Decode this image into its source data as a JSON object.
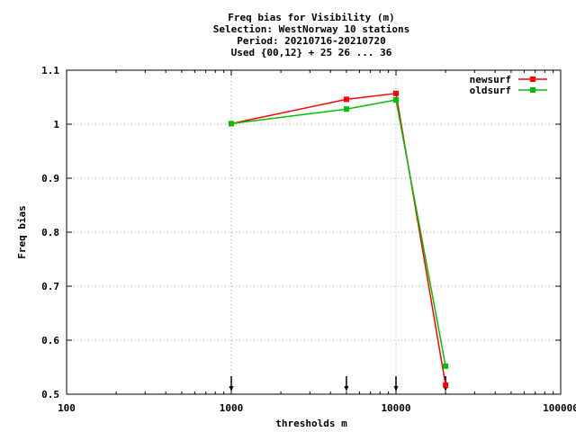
{
  "chart_data": {
    "type": "line",
    "title_lines": [
      "Freq bias  for Visibility (m)",
      "Selection: WestNorway     10 stations",
      "Period: 20210716-20210720",
      "Used {00,12} + 25 26 ... 36"
    ],
    "xlabel": "thresholds m",
    "ylabel": "Freq bias",
    "x_scale": "log",
    "xlim": [
      100,
      100000
    ],
    "ylim": [
      0.5,
      1.1
    ],
    "x_ticks": [
      100,
      1000,
      10000,
      100000
    ],
    "x_tick_labels": [
      "100",
      "1000",
      "10000",
      "100000"
    ],
    "y_ticks": [
      0.5,
      0.6,
      0.7,
      0.8,
      0.9,
      1.0,
      1.1
    ],
    "y_tick_labels": [
      "0.5",
      "0.6",
      "0.7",
      "0.8",
      "0.9",
      "1",
      "1.1"
    ],
    "grid": true,
    "legend_position": "top-right",
    "threshold_markers": [
      1000,
      5000,
      10000,
      20000
    ],
    "series": [
      {
        "name": "newsurf",
        "color": "#ff0000",
        "x": [
          1000,
          5000,
          10000,
          20000
        ],
        "y": [
          1.001,
          1.046,
          1.057,
          0.517
        ]
      },
      {
        "name": "oldsurf",
        "color": "#00c000",
        "x": [
          1000,
          5000,
          10000,
          20000
        ],
        "y": [
          1.001,
          1.028,
          1.045,
          0.552
        ]
      }
    ]
  }
}
